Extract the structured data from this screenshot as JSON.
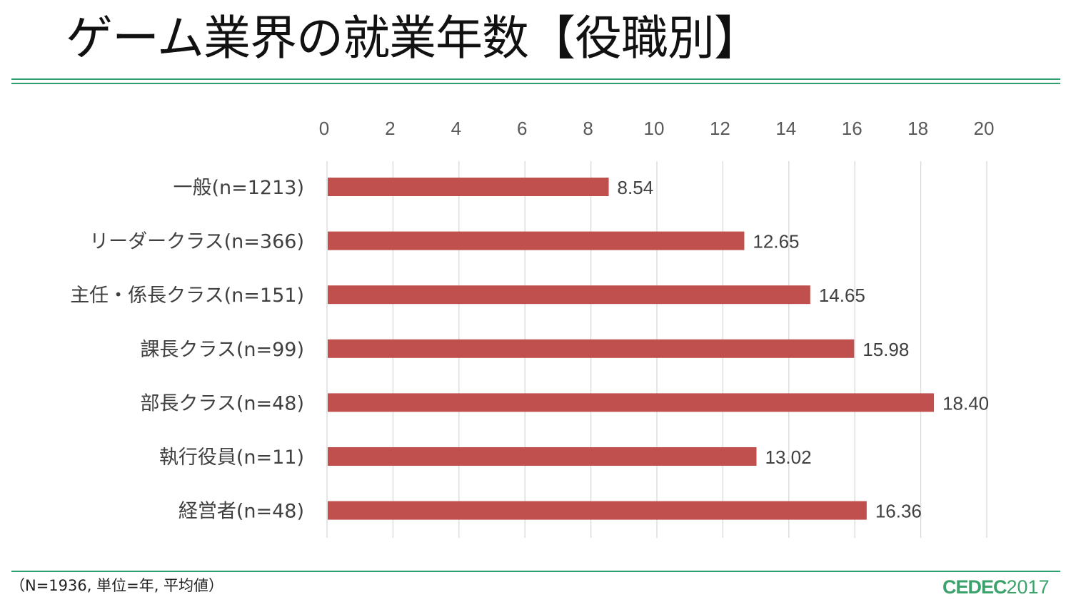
{
  "slide": {
    "title": "ゲーム業界の就業年数【役職別】",
    "footnote": "（N=1936, 単位=年, 平均値）",
    "logo_brand": "CEDEC",
    "logo_year": "2017"
  },
  "colors": {
    "bar": "#c0504d",
    "gridline": "#d9d9d9",
    "rule": "#2f9e6e",
    "logo": "#3aa26a"
  },
  "chart_data": {
    "type": "bar",
    "orientation": "horizontal",
    "categories": [
      "一般(n=1213)",
      "リーダークラス(n=366)",
      "主任・係長クラス(n=151)",
      "課長クラス(n=99)",
      "部長クラス(n=48)",
      "執行役員(n=11)",
      "経営者(n=48)"
    ],
    "values": [
      8.54,
      12.65,
      14.65,
      15.98,
      18.4,
      13.02,
      16.36
    ],
    "value_labels": [
      "8.54",
      "12.65",
      "14.65",
      "15.98",
      "18.40",
      "13.02",
      "16.36"
    ],
    "xlim": [
      0,
      20
    ],
    "xticks": [
      "0",
      "2",
      "4",
      "6",
      "8",
      "10",
      "12",
      "14",
      "16",
      "18",
      "20"
    ],
    "axis_position": "top",
    "grid": true,
    "legend": "none"
  }
}
